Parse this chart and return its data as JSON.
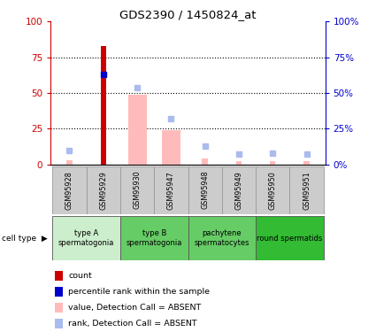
{
  "title": "GDS2390 / 1450824_at",
  "samples": [
    "GSM95928",
    "GSM95929",
    "GSM95930",
    "GSM95947",
    "GSM95948",
    "GSM95949",
    "GSM95950",
    "GSM95951"
  ],
  "count_values": [
    null,
    83,
    null,
    null,
    null,
    null,
    null,
    null
  ],
  "count_color": "#cc0000",
  "percentile_value": 63,
  "percentile_idx": 1,
  "percentile_color": "#0000cc",
  "absent_bar_values": [
    null,
    null,
    49,
    24,
    null,
    null,
    null,
    null
  ],
  "absent_bar_color": "#ffbbbb",
  "absent_rank_values": [
    10,
    null,
    54,
    32,
    13,
    7,
    8,
    7
  ],
  "absent_rank_color": "#aabbee",
  "small_absent_bar_values": [
    3,
    null,
    2,
    3,
    4,
    2,
    2,
    2
  ],
  "ylim": [
    0,
    100
  ],
  "yticks": [
    0,
    25,
    50,
    75,
    100
  ],
  "ytick_labels_right": [
    "0%",
    "25%",
    "50%",
    "75%",
    "100%"
  ],
  "left_tick_color": "#cc0000",
  "right_tick_color": "#0000cc",
  "cell_groups": [
    {
      "label": "type A\nspermatogonia",
      "start": 0,
      "end": 1,
      "color": "#cceecc"
    },
    {
      "label": "type B\nspermatogonia",
      "start": 2,
      "end": 3,
      "color": "#66cc66"
    },
    {
      "label": "pachytene\nspermatocytes",
      "start": 4,
      "end": 5,
      "color": "#66cc66"
    },
    {
      "label": "round spermatids",
      "start": 6,
      "end": 7,
      "color": "#33bb33"
    }
  ],
  "gsm_box_color": "#cccccc",
  "gsm_box_edge": "#999999",
  "legend_items": [
    {
      "label": "count",
      "color": "#cc0000"
    },
    {
      "label": "percentile rank within the sample",
      "color": "#0000cc"
    },
    {
      "label": "value, Detection Call = ABSENT",
      "color": "#ffbbbb"
    },
    {
      "label": "rank, Detection Call = ABSENT",
      "color": "#aabbee"
    }
  ]
}
